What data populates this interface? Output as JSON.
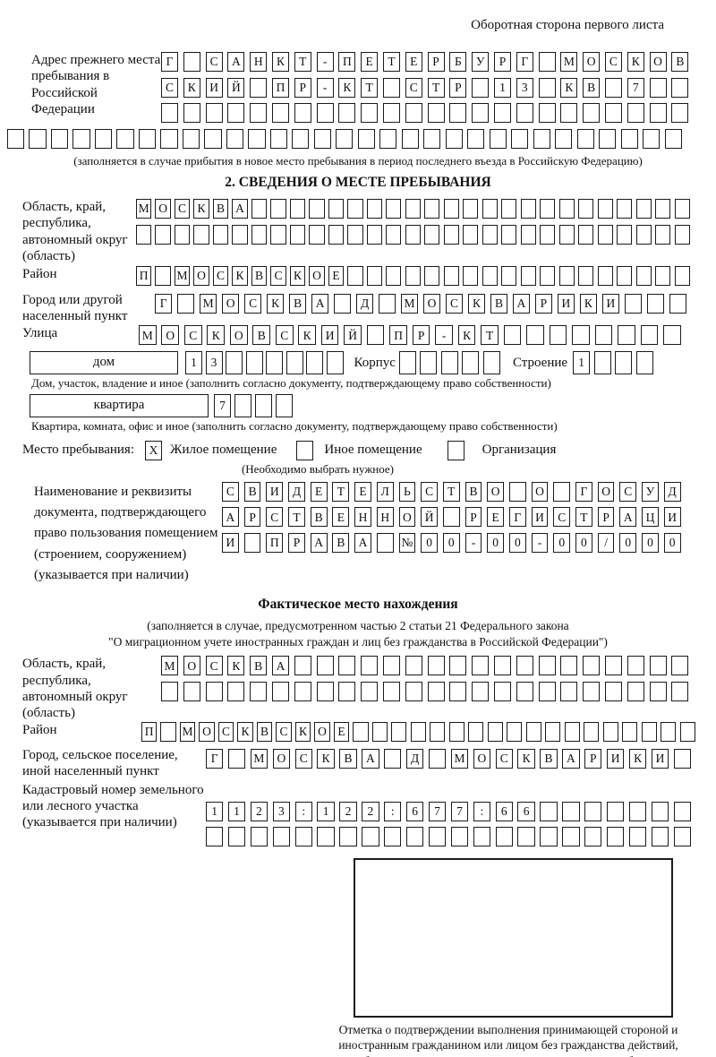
{
  "page": {
    "header": "Оборотная сторона первого листа"
  },
  "prev_address": {
    "label": "Адрес прежнего места пребывания в Российской Федерации",
    "rows": [
      [
        "Г",
        "",
        "С",
        "А",
        "Н",
        "К",
        "Т",
        "-",
        "П",
        "Е",
        "Т",
        "Е",
        "Р",
        "Б",
        "У",
        "Р",
        "Г",
        "",
        "М",
        "О",
        "С",
        "К",
        "О",
        "В"
      ],
      [
        "С",
        "К",
        "И",
        "Й",
        "",
        "П",
        "Р",
        "-",
        "К",
        "Т",
        "",
        "С",
        "Т",
        "Р",
        "",
        "1",
        "3",
        "",
        "К",
        "В",
        "",
        "7",
        "",
        ""
      ],
      [
        "",
        "",
        "",
        "",
        "",
        "",
        "",
        "",
        "",
        "",
        "",
        "",
        "",
        "",
        "",
        "",
        "",
        "",
        "",
        "",
        "",
        "",
        "",
        ""
      ]
    ],
    "row_full": [
      "",
      "",
      "",
      "",
      "",
      "",
      "",
      "",
      "",
      "",
      "",
      "",
      "",
      "",
      "",
      "",
      "",
      "",
      "",
      "",
      "",
      "",
      "",
      "",
      "",
      "",
      "",
      "",
      "",
      "",
      ""
    ],
    "caption": "(заполняется в случае прибытия в новое место пребывания в период последнего въезда в Российскую Федерацию)"
  },
  "section2": {
    "title": "2. СВЕДЕНИЯ О МЕСТЕ ПРЕБЫВАНИЯ",
    "oblast": {
      "label": "Область, край, республика, автономный округ (область)",
      "rows": [
        [
          "М",
          "О",
          "С",
          "К",
          "В",
          "А",
          "",
          "",
          "",
          "",
          "",
          "",
          "",
          "",
          "",
          "",
          "",
          "",
          "",
          "",
          "",
          "",
          "",
          "",
          "",
          "",
          "",
          "",
          ""
        ],
        [
          "",
          "",
          "",
          "",
          "",
          "",
          "",
          "",
          "",
          "",
          "",
          "",
          "",
          "",
          "",
          "",
          "",
          "",
          "",
          "",
          "",
          "",
          "",
          "",
          "",
          "",
          "",
          "",
          ""
        ]
      ]
    },
    "raion": {
      "label": "Район",
      "row": [
        "П",
        "",
        "М",
        "О",
        "С",
        "К",
        "В",
        "С",
        "К",
        "О",
        "Е",
        "",
        "",
        "",
        "",
        "",
        "",
        "",
        "",
        "",
        "",
        "",
        "",
        "",
        "",
        "",
        "",
        "",
        ""
      ]
    },
    "gorod": {
      "label": "Город или другой населенный пункт",
      "row": [
        "Г",
        "",
        "М",
        "О",
        "С",
        "К",
        "В",
        "А",
        "",
        "Д",
        "",
        "М",
        "О",
        "С",
        "К",
        "В",
        "А",
        "Р",
        "И",
        "К",
        "И",
        "",
        "",
        ""
      ]
    },
    "ulitsa": {
      "label": "Улица",
      "row": [
        "М",
        "О",
        "С",
        "К",
        "О",
        "В",
        "С",
        "К",
        "И",
        "Й",
        "",
        "П",
        "Р",
        "-",
        "К",
        "Т",
        "",
        "",
        "",
        "",
        "",
        "",
        "",
        ""
      ]
    },
    "dom": {
      "label_box": "дом",
      "cells": [
        "1",
        "3",
        "",
        "",
        "",
        "",
        "",
        ""
      ],
      "korpus_label": "Корпус",
      "korpus_cells": [
        "",
        "",
        "",
        "",
        ""
      ],
      "stroenie_label": "Строение",
      "stroenie_cells": [
        "1",
        "",
        "",
        ""
      ],
      "caption": "Дом, участок, владение и иное (заполнить согласно документу, подтверждающему право собственности)"
    },
    "kvartira": {
      "label_box": "квартира",
      "cells": [
        "7",
        "",
        "",
        ""
      ],
      "caption": "Квартира, комната, офис и иное (заполнить согласно документу, подтверждающему право собственности)"
    },
    "mesto": {
      "label": "Место пребывания:",
      "options": [
        {
          "mark": "X",
          "label": "Жилое помещение"
        },
        {
          "mark": "",
          "label": "Иное помещение"
        },
        {
          "mark": "",
          "label": "Организация"
        }
      ],
      "note": "(Необходимо выбрать нужное)"
    },
    "document": {
      "label": "Наименование и реквизиты документа, подтверждающего право пользования помещением (строением, сооружением) (указывается при наличии)",
      "rows": [
        [
          "С",
          "В",
          "И",
          "Д",
          "Е",
          "Т",
          "Е",
          "Л",
          "Ь",
          "С",
          "Т",
          "В",
          "О",
          "",
          "О",
          "",
          "Г",
          "О",
          "С",
          "У",
          "Д"
        ],
        [
          "А",
          "Р",
          "С",
          "Т",
          "В",
          "Е",
          "Н",
          "Н",
          "О",
          "Й",
          "",
          "Р",
          "Е",
          "Г",
          "И",
          "С",
          "Т",
          "Р",
          "А",
          "Ц",
          "И"
        ],
        [
          "И",
          "",
          "П",
          "Р",
          "А",
          "В",
          "А",
          "",
          "№",
          "0",
          "0",
          "-",
          "0",
          "0",
          "-",
          "0",
          "0",
          "/",
          "0",
          "0",
          "0"
        ]
      ]
    }
  },
  "fact": {
    "title": "Фактическое место нахождения",
    "caption_line1": "(заполняется в случае, предусмотренном частью 2 статьи 21 Федерального закона",
    "caption_line2": "\"О миграционном учете иностранных граждан и лиц без гражданства в Российской Федерации\")",
    "oblast": {
      "label": "Область, край, республика, автономный округ (область)",
      "rows": [
        [
          "М",
          "О",
          "С",
          "К",
          "В",
          "А",
          "",
          "",
          "",
          "",
          "",
          "",
          "",
          "",
          "",
          "",
          "",
          "",
          "",
          "",
          "",
          "",
          "",
          ""
        ],
        [
          "",
          "",
          "",
          "",
          "",
          "",
          "",
          "",
          "",
          "",
          "",
          "",
          "",
          "",
          "",
          "",
          "",
          "",
          "",
          "",
          "",
          "",
          "",
          ""
        ]
      ]
    },
    "raion": {
      "label": "Район",
      "row": [
        "П",
        "",
        "М",
        "О",
        "С",
        "К",
        "В",
        "С",
        "К",
        "О",
        "Е",
        "",
        "",
        "",
        "",
        "",
        "",
        "",
        "",
        "",
        "",
        "",
        "",
        "",
        "",
        "",
        "",
        "",
        ""
      ]
    },
    "gorod": {
      "label": "Город, сельское поселение, иной населенный пункт",
      "row": [
        "Г",
        "",
        "М",
        "О",
        "С",
        "К",
        "В",
        "А",
        "",
        "Д",
        "",
        "М",
        "О",
        "С",
        "К",
        "В",
        "А",
        "Р",
        "И",
        "К",
        "И",
        ""
      ]
    },
    "kadastr": {
      "label": "Кадастровый номер земельного или лесного участка (указывается при наличии)",
      "rows": [
        [
          "1",
          "1",
          "2",
          "3",
          ":",
          "1",
          "2",
          "2",
          ":",
          "6",
          "7",
          "7",
          ":",
          "6",
          "6",
          "",
          "",
          "",
          "",
          "",
          "",
          ""
        ],
        [
          "",
          "",
          "",
          "",
          "",
          "",
          "",
          "",
          "",
          "",
          "",
          "",
          "",
          "",
          "",
          "",
          "",
          "",
          "",
          "",
          "",
          ""
        ]
      ]
    }
  },
  "stamp": {
    "caption": "Отметка о подтверждении выполнения принимающей стороной и иностранным гражданином или лицом без гражданства действий, необходимых для его постановки на учет по месту пребывания"
  }
}
